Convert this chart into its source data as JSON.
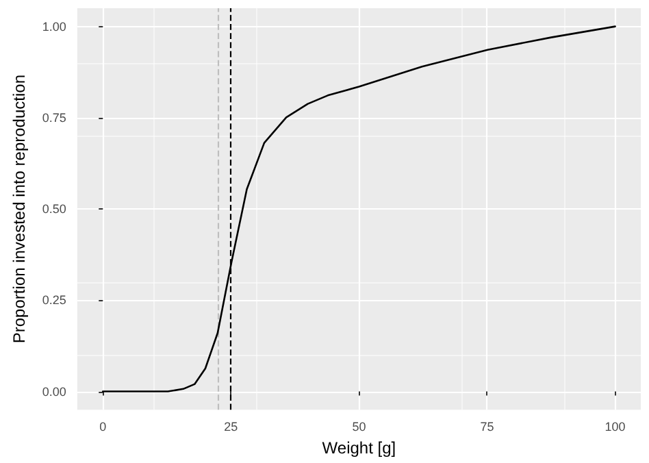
{
  "chart_data": {
    "type": "line",
    "xlabel": "Weight [g]",
    "ylabel": "Proportion invested into reproduction",
    "x": [
      0,
      12.7,
      15.7,
      17.9,
      20,
      22.4,
      25.1,
      28.1,
      31.5,
      35.8,
      40,
      43.9,
      50,
      62.3,
      75.1,
      87.5,
      100
    ],
    "series": [
      {
        "color": "#000000",
        "values": [
          0,
          0,
          0.007,
          0.02,
          0.063,
          0.16,
          0.354,
          0.554,
          0.681,
          0.751,
          0.788,
          0.811,
          0.835,
          0.89,
          0.936,
          0.97,
          1.0
        ]
      }
    ],
    "xlim": [
      -5,
      105
    ],
    "xticks": [
      0,
      25,
      50,
      75,
      100
    ],
    "ylim": [
      -0.05,
      1.05
    ],
    "yticks": [
      {
        "value": 0,
        "label": "0.00"
      },
      {
        "value": 0.25,
        "label": "0.25"
      },
      {
        "value": 0.5,
        "label": "0.50"
      },
      {
        "value": 0.75,
        "label": "0.75"
      },
      {
        "value": 1,
        "label": "1.00"
      }
    ],
    "ref_lines": [
      {
        "axis": "x",
        "value": 22.4,
        "color": "#bebebe",
        "line_style": "dashed"
      },
      {
        "axis": "x",
        "value": 25,
        "color": "#000000",
        "line_style": "dashed"
      }
    ],
    "grid": true,
    "marker": "none",
    "line_style": "solid"
  }
}
